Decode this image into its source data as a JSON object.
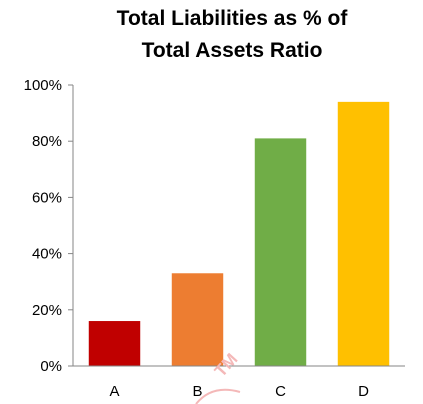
{
  "chart_data": {
    "type": "bar",
    "title_lines": [
      "Total Liabilities as % of",
      "Total Assets Ratio"
    ],
    "categories": [
      "A",
      "B",
      "C",
      "D"
    ],
    "values": [
      16,
      33,
      81,
      94
    ],
    "colors": [
      "#c00000",
      "#ed7d31",
      "#70ad47",
      "#ffc000"
    ],
    "ylim": [
      0,
      100
    ],
    "y_ticks": [
      0,
      20,
      40,
      60,
      80,
      100
    ],
    "y_tick_labels": [
      "0%",
      "20%",
      "40%",
      "60%",
      "80%",
      "100%"
    ],
    "xlabel": "",
    "ylabel": "",
    "grid": false,
    "legend": "none"
  },
  "watermark": {
    "text": "TM",
    "color": "#f4b8b8"
  }
}
